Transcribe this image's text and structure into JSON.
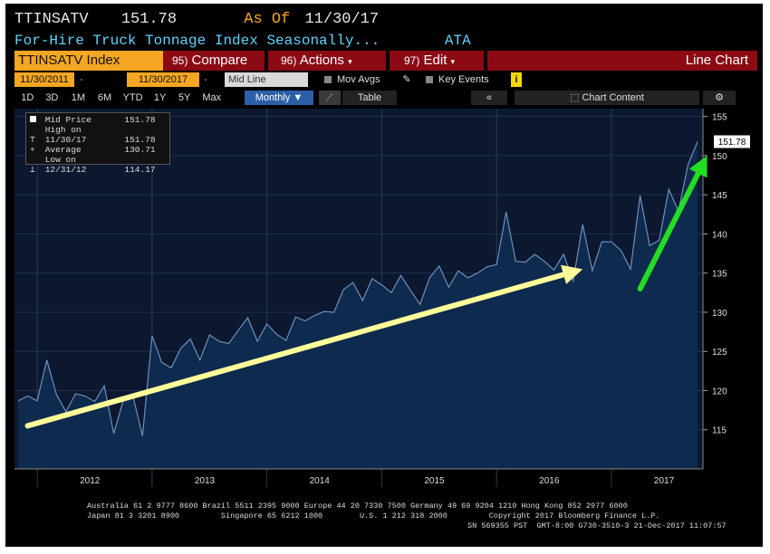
{
  "header": {
    "ticker": "TTINSATV",
    "price": "151.78",
    "as_of_label": "As Of",
    "as_of_date": "11/30/17",
    "description": "For-Hire Truck Tonnage Index Seasonally...",
    "source": "ATA"
  },
  "menu": {
    "security": "TTINSATV Index",
    "compare": "Compare",
    "compare_num": "95)",
    "actions": "Actions",
    "actions_num": "96)",
    "edit": "Edit",
    "edit_num": "97)",
    "chart_type": "Line Chart"
  },
  "toolbar": {
    "start_date": "11/30/2011",
    "end_date": "11/30/2017",
    "line_type": "Mid Line",
    "mov_avgs": "Mov Avgs",
    "key_events": "Key Events",
    "ranges": [
      "1D",
      "3D",
      "1M",
      "6M",
      "YTD",
      "1Y",
      "5Y",
      "Max"
    ],
    "period": "Monthly",
    "table": "Table",
    "chart_content": "Chart Content"
  },
  "legend": {
    "mid_price_label": "Mid Price",
    "mid_price_value": "151.78",
    "high_label": "High on 11/30/17",
    "high_value": "151.78",
    "avg_label": "Average",
    "avg_value": "130.71",
    "low_label": "Low on 12/31/12",
    "low_value": "114.17"
  },
  "last_value_tag": "151.78",
  "colors": {
    "background": "#000000",
    "plot_bg": "#0b1830",
    "area_fill": "#0e2a4f",
    "line": "#6f8fb8",
    "menu_red": "#8b0a14",
    "accent_orange": "#f5a623",
    "yellow_arrow": "#ffff99",
    "green_arrow": "#22dd22"
  },
  "chart_data": {
    "type": "area",
    "xlabel": "",
    "ylabel": "",
    "ylim": [
      110,
      156
    ],
    "yticks": [
      115,
      120,
      125,
      130,
      135,
      140,
      145,
      150,
      155
    ],
    "x_year_labels": [
      "2012",
      "2013",
      "2014",
      "2015",
      "2016",
      "2017"
    ],
    "x_start": "2011-11",
    "x_end": "2017-11",
    "series": [
      {
        "values": [
          118.7,
          119.3,
          118.7,
          123.9,
          119.5,
          117.3,
          119.6,
          119.3,
          118.6,
          120.6,
          114.5,
          118.8,
          119.3,
          114.2,
          127.0,
          123.6,
          122.9,
          125.4,
          126.6,
          123.9,
          127.1,
          126.3,
          126.0,
          127.7,
          129.3,
          126.3,
          128.5,
          127.2,
          126.4,
          129.4,
          128.9,
          129.6,
          130.1,
          130.0,
          132.9,
          133.8,
          131.5,
          134.3,
          133.5,
          132.5,
          134.7,
          132.8,
          131.0,
          134.4,
          135.9,
          133.2,
          135.3,
          134.4,
          135.0,
          135.8,
          136.1,
          142.8,
          136.5,
          136.4,
          137.4,
          136.5,
          135.4,
          137.4,
          134.0,
          141.2,
          135.3,
          139.0,
          139.0,
          137.9,
          135.5,
          144.9,
          138.5,
          139.2,
          145.7,
          142.9,
          148.8,
          151.78
        ]
      }
    ],
    "annotations": [
      {
        "type": "arrow",
        "color": "yellow",
        "from": [
          "2011-12",
          115.5
        ],
        "to": [
          "2016-10",
          135.5
        ]
      },
      {
        "type": "arrow",
        "color": "green",
        "from": [
          "2017-04",
          133.0
        ],
        "to": [
          "2017-11",
          150.0
        ]
      }
    ]
  },
  "footer": {
    "line1": "Australia 61 2 9777 8600 Brazil 5511 2395 9000 Europe 44 20 7330 7500 Germany 49 69 9204 1210 Hong Kong 852 2977 6000",
    "line2": "Japan 81 3 3201 8900         Singapore 65 6212 1000        U.S. 1 212 318 2000         Copyright 2017 Bloomberg Finance L.P.",
    "line3": "SN 569355 PST  GMT-8:00 G730-3510-3 21-Dec-2017 11:07:57"
  }
}
